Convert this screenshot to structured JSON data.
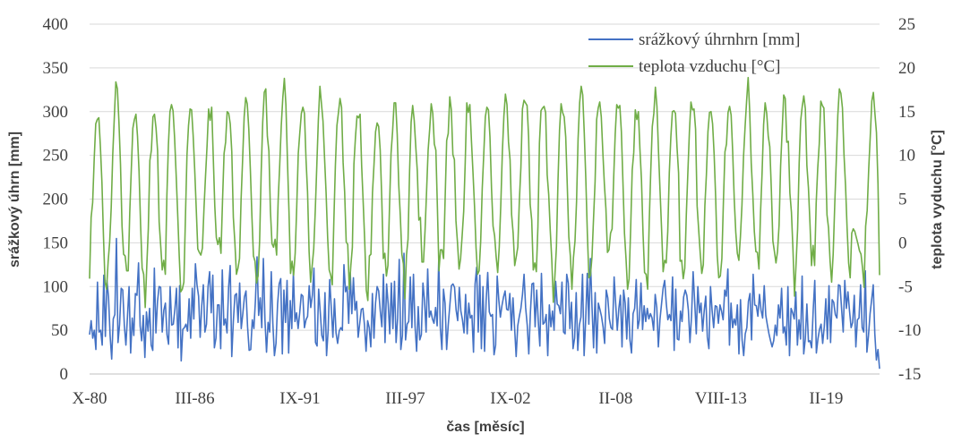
{
  "chart_data": {
    "type": "line",
    "title": "",
    "xlabel": "čas [měsíc]",
    "ylabel_left": "srážkový úhrn [mm]",
    "ylabel_right": "teplota vyduchu [°C]",
    "x_tick_labels": [
      "X-80",
      "III-86",
      "IX-91",
      "III-97",
      "IX-02",
      "II-08",
      "VIII-13",
      "II-19"
    ],
    "y_left_ticks": [
      "0",
      "50",
      "100",
      "150",
      "200",
      "250",
      "300",
      "350",
      "400"
    ],
    "y_right_ticks": [
      "-15",
      "-10",
      "-5",
      "0",
      "5",
      "10",
      "15",
      "20",
      "25"
    ],
    "ylim_left": [
      0,
      400
    ],
    "ylim_right": [
      -15,
      25
    ],
    "x_range_months_from_X80": [
      0,
      488
    ],
    "legend_position": "top-right",
    "grid": true,
    "series": [
      {
        "name": "srážkový úhrnhrn [mm]",
        "axis": "left",
        "color": "#4472c4",
        "values": [
          45,
          61,
          41,
          50,
          28,
          105,
          48,
          50,
          33,
          113,
          43,
          107,
          88,
          44,
          17,
          63,
          68,
          155,
          36,
          57,
          98,
          96,
          56,
          33,
          66,
          100,
          24,
          64,
          44,
          92,
          90,
          127,
          55,
          38,
          67,
          19,
          71,
          49,
          75,
          33,
          27,
          121,
          47,
          83,
          100,
          99,
          48,
          73,
          81,
          45,
          34,
          100,
          56,
          57,
          74,
          98,
          30,
          101,
          15,
          51,
          53,
          57,
          49,
          86,
          41,
          98,
          63,
          126,
          102,
          89,
          42,
          78,
          102,
          48,
          57,
          100,
          117,
          70,
          113,
          30,
          41,
          79,
          79,
          29,
          119,
          56,
          63,
          47,
          99,
          124,
          20,
          60,
          90,
          92,
          59,
          104,
          52,
          69,
          88,
          95,
          54,
          27,
          28,
          62,
          52,
          85,
          134,
          67,
          87,
          53,
          132,
          62,
          25,
          59,
          48,
          117,
          58,
          21,
          35,
          80,
          103,
          109,
          23,
          96,
          59,
          107,
          24,
          84,
          52,
          116,
          60,
          70,
          52,
          70,
          91,
          89,
          53,
          62,
          66,
          101,
          76,
          90,
          121,
          36,
          32,
          97,
          71,
          44,
          38,
          93,
          21,
          50,
          108,
          75,
          42,
          86,
          47,
          35,
          49,
          53,
          50,
          125,
          94,
          100,
          58,
          116,
          69,
          110,
          73,
          83,
          42,
          58,
          74,
          75,
          56,
          26,
          61,
          53,
          31,
          92,
          41,
          81,
          100,
          95,
          72,
          54,
          114,
          36,
          103,
          80,
          46,
          104,
          52,
          106,
          36,
          64,
          131,
          28,
          44,
          138,
          39,
          57,
          60,
          111,
          53,
          114,
          55,
          26,
          77,
          39,
          45,
          104,
          84,
          48,
          120,
          65,
          72,
          63,
          58,
          76,
          55,
          131,
          53,
          28,
          97,
          81,
          28,
          56,
          78,
          101,
          103,
          99,
          73,
          61,
          99,
          72,
          62,
          47,
          91,
          46,
          81,
          64,
          67,
          25,
          103,
          122,
          48,
          113,
          29,
          100,
          26,
          84,
          116,
          71,
          66,
          68,
          22,
          33,
          112,
          85,
          65,
          78,
          88,
          95,
          74,
          73,
          92,
          50,
          87,
          53,
          20,
          55,
          66,
          75,
          91,
          114,
          76,
          56,
          23,
          70,
          103,
          104,
          54,
          96,
          60,
          32,
          115,
          57,
          59,
          68,
          21,
          79,
          54,
          72,
          50,
          106,
          80,
          78,
          69,
          105,
          48,
          46,
          114,
          104,
          52,
          82,
          29,
          41,
          93,
          27,
          56,
          65,
          114,
          21,
          62,
          115,
          57,
          132,
          77,
          30,
          93,
          24,
          81,
          74,
          66,
          54,
          35,
          96,
          87,
          63,
          53,
          51,
          111,
          80,
          50,
          75,
          90,
          31,
          96,
          81,
          40,
          87,
          39,
          24,
          69,
          75,
          108,
          52,
          62,
          104,
          51,
          78,
          60,
          75,
          63,
          69,
          64,
          50,
          91,
          76,
          31,
          62,
          80,
          98,
          107,
          81,
          62,
          68,
          61,
          111,
          27,
          97,
          40,
          39,
          72,
          60,
          88,
          96,
          90,
          73,
          36,
          66,
          117,
          82,
          46,
          100,
          70,
          81,
          49,
          72,
          89,
          42,
          29,
          100,
          73,
          53,
          78,
          77,
          58,
          79,
          72,
          62,
          96,
          89,
          120,
          33,
          81,
          53,
          63,
          56,
          79,
          23,
          85,
          39,
          21,
          46,
          53,
          83,
          92,
          39,
          114,
          79,
          78,
          66,
          91,
          73,
          64,
          101,
          67,
          56,
          46,
          38,
          31,
          38,
          56,
          44,
          79,
          64,
          98,
          47,
          54,
          33,
          100,
          21,
          75,
          70,
          63,
          94,
          33,
          62,
          40,
          112,
          23,
          40,
          80,
          37,
          38,
          30,
          73,
          107,
          24,
          40,
          51,
          57,
          35,
          54,
          86,
          40,
          101,
          36,
          85,
          82,
          68,
          64,
          102,
          101,
          74,
          48,
          107,
          75,
          94,
          72,
          53,
          59,
          90,
          31,
          62,
          64,
          102,
          53,
          48,
          118,
          25,
          44,
          69,
          85,
          102,
          46,
          16,
          28,
          6
        ]
      },
      {
        "name": "teplota vzduchu [°C]",
        "axis": "right",
        "color": "#70ad47",
        "values": [
          -4.1,
          2.9,
          4.6,
          9.6,
          13.6,
          14.1,
          14.3,
          11.0,
          6.9,
          0.7,
          -4.5,
          -5.3,
          -2.2,
          0.1,
          4.0,
          10.1,
          14.3,
          18.4,
          17.6,
          13.8,
          9.0,
          1.9,
          -1.3,
          -1.5,
          -3.2,
          -3.2,
          3.5,
          8.4,
          13.1,
          14.1,
          14.7,
          12.2,
          8.2,
          2.1,
          -2.9,
          -3.6,
          -7.4,
          -2.7,
          1.6,
          9.4,
          10.6,
          14.4,
          14.7,
          13.1,
          10.5,
          2.4,
          -0.3,
          -3.1,
          -2.0,
          -3.6,
          5.3,
          11.2,
          15.0,
          15.8,
          15.1,
          12.0,
          7.8,
          3.3,
          -1.5,
          -5.6,
          -5.3,
          -4.5,
          2.8,
          10.0,
          13.4,
          15.3,
          15.2,
          12.3,
          8.4,
          3.9,
          -0.7,
          -1.1,
          -1.4,
          -0.6,
          3.9,
          7.6,
          11.1,
          15.3,
          14.0,
          15.5,
          9.9,
          4.2,
          0.6,
          -0.2,
          0.6,
          -1.2,
          4.8,
          10.2,
          11.5,
          15.0,
          14.8,
          13.6,
          10.4,
          2.9,
          0.0,
          -3.6,
          -2.9,
          -1.8,
          4.9,
          9.5,
          14.4,
          16.6,
          15.9,
          13.0,
          8.4,
          3.1,
          -1.5,
          -2.1,
          -4.6,
          -3.8,
          0.2,
          8.0,
          13.8,
          17.2,
          17.6,
          12.2,
          10.5,
          3.6,
          -0.1,
          -0.5,
          0.4,
          -1.4,
          4.9,
          8.9,
          13.4,
          16.6,
          18.8,
          15.8,
          9.4,
          3.5,
          -3.5,
          -2.1,
          -3.7,
          -1.2,
          4.1,
          10.2,
          12.6,
          14.8,
          15.5,
          14.8,
          9.6,
          5.8,
          -1.0,
          -4.5,
          -2.6,
          -0.7,
          3.7,
          8.9,
          14.1,
          17.9,
          15.9,
          13.9,
          9.7,
          5.7,
          0.6,
          -3.1,
          -3.7,
          -4.8,
          2.4,
          8.8,
          13.4,
          14.9,
          16.5,
          15.5,
          9.2,
          5.8,
          0.1,
          -0.2,
          -5.3,
          -2.6,
          -0.5,
          9.0,
          12.1,
          14.5,
          14.3,
          14.7,
          8.8,
          4.6,
          0.1,
          -5.4,
          -6.6,
          -1.5,
          -1.3,
          5.7,
          9.0,
          12.7,
          13.7,
          13.3,
          10.6,
          5.1,
          -1.8,
          -1.2,
          -3.8,
          -2.6,
          4.0,
          10.2,
          12.7,
          16.0,
          16.0,
          12.4,
          6.6,
          3.1,
          -1.3,
          -2.4,
          -6.4,
          -1.4,
          0.4,
          8.2,
          13.8,
          15.7,
          14.0,
          11.0,
          8.2,
          2.6,
          2.9,
          -2.2,
          -2.2,
          1.4,
          5.9,
          10.6,
          13.0,
          15.9,
          14.8,
          11.3,
          10.6,
          4.0,
          -3.2,
          -0.8,
          -0.8,
          -1.8,
          5.1,
          11.7,
          12.5,
          16.7,
          15.2,
          10.1,
          9.5,
          2.5,
          0.0,
          -3.0,
          -1.8,
          0.8,
          3.6,
          9.2,
          16.0,
          14.9,
          15.8,
          11.7,
          8.1,
          4.2,
          -0.6,
          -3.6,
          -3.2,
          0.2,
          6.2,
          10.2,
          14.4,
          15.5,
          15.2,
          12.1,
          6.2,
          1.9,
          0.8,
          -1.6,
          -3.4,
          -0.5,
          4.3,
          10.3,
          14.5,
          17.0,
          15.8,
          11.5,
          9.5,
          3.2,
          1.1,
          -2.6,
          -1.6,
          -0.5,
          4.8,
          8.6,
          15.3,
          16.3,
          16.0,
          15.7,
          12.1,
          4.4,
          2.6,
          -3.1,
          -2.3,
          -3.3,
          1.8,
          11.4,
          15.1,
          15.4,
          15.6,
          14.9,
          7.8,
          5.5,
          1.4,
          -2.0,
          -6.8,
          -3.8,
          -0.4,
          7.1,
          12.9,
          15.9,
          14.9,
          14.4,
          12.1,
          6.6,
          0.7,
          -1.5,
          -5.3,
          -1.7,
          0.2,
          4.7,
          11.9,
          16.0,
          17.9,
          16.9,
          12.5,
          7.3,
          1.0,
          -4.0,
          -3.7,
          -1.6,
          2.8,
          7.0,
          14.1,
          15.4,
          16.1,
          14.4,
          10.4,
          6.7,
          3.9,
          -1.1,
          -0.8,
          1.1,
          1.6,
          7.3,
          12.4,
          15.8,
          15.4,
          15.7,
          12.7,
          7.0,
          1.1,
          -1.8,
          -5.3,
          -4.1,
          1.6,
          8.3,
          10.3,
          15.2,
          14.1,
          15.0,
          10.7,
          7.2,
          1.1,
          -3.4,
          -3.6,
          -5.3,
          2.3,
          8.2,
          13.3,
          14.8,
          17.8,
          15.6,
          10.5,
          6.0,
          1.6,
          -3.3,
          -2.0,
          -2.3,
          1.3,
          8.0,
          12.1,
          15.0,
          15.1,
          14.8,
          10.9,
          8.0,
          -2.1,
          -2.0,
          -4.1,
          -2.9,
          3.2,
          8.0,
          12.7,
          16.1,
          15.2,
          15.3,
          13.0,
          4.2,
          1.5,
          -1.2,
          -3.5,
          -2.5,
          4.2,
          7.8,
          12.7,
          14.9,
          15.0,
          13.6,
          10.1,
          5.1,
          -1.4,
          -4.0,
          -3.8,
          -1.8,
          4.7,
          10.4,
          11.3,
          14.9,
          15.6,
          14.6,
          10.4,
          5.0,
          1.2,
          -1.2,
          -2.0,
          0.7,
          4.3,
          9.8,
          13.2,
          16.2,
          18.9,
          15.1,
          9.1,
          5.6,
          1.3,
          -1.0,
          -1.1,
          -3.0,
          3.4,
          7.9,
          13.5,
          16.0,
          14.8,
          12.2,
          11.0,
          6.1,
          0.2,
          -1.0,
          -2.3,
          -1.0,
          2.0,
          8.8,
          12.8,
          16.9,
          16.5,
          11.5,
          11.6,
          5.7,
          3.5,
          -0.8,
          -6.1,
          -2.4,
          1.6,
          9.1,
          14.0,
          15.6,
          16.8,
          15.3,
          8.8,
          6.3,
          2.2,
          -2.6,
          -0.3,
          -2.6,
          4.5,
          8.5,
          11.3,
          16.2,
          15.7,
          15.4,
          10.0,
          3.2,
          1.7,
          -2.1,
          -4.5,
          -1.3,
          4.3,
          9.3,
          14.6,
          17.6,
          17.1,
          15.4,
          10.1,
          6.5,
          1.7,
          -2.3,
          -4.0,
          1.1,
          1.6,
          1.3,
          0.6,
          -0.1,
          -0.9,
          -1.3,
          -2.9,
          -5.1,
          1.9,
          3.7,
          8.5,
          12.2,
          16.2,
          17.2,
          14.8,
          12.6,
          6.7,
          -3.7
        ]
      }
    ]
  }
}
